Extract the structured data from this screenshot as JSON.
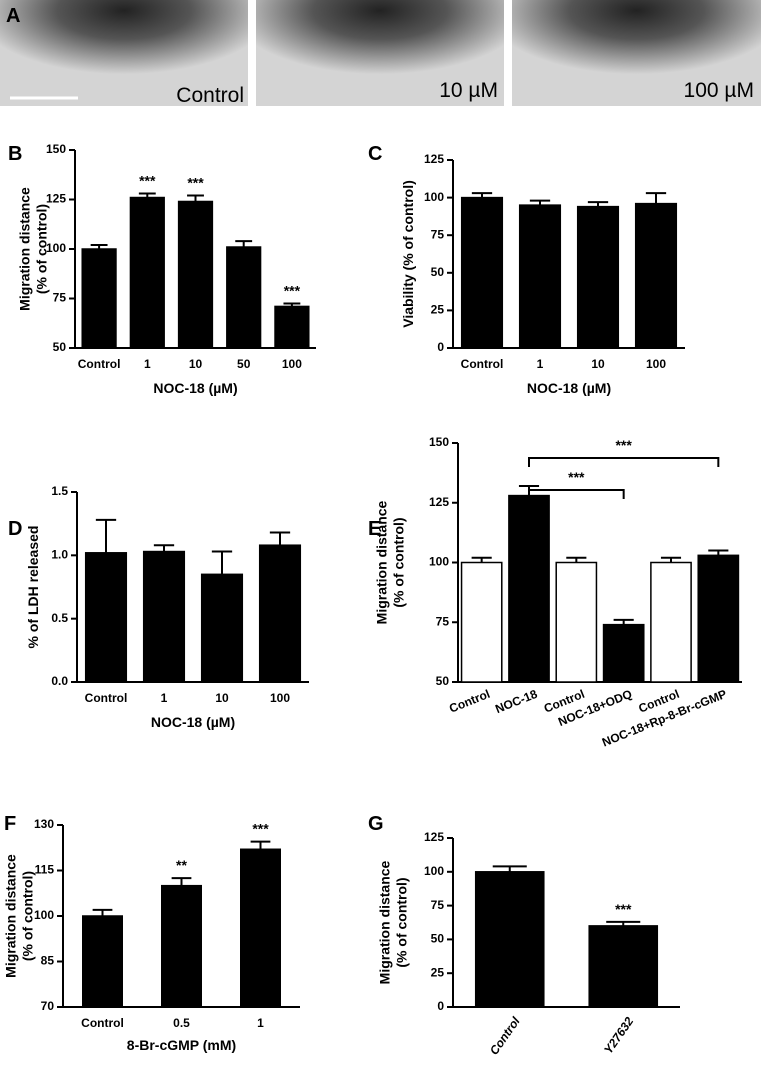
{
  "panel_a": {
    "panel": "A",
    "labels": [
      "Control",
      "10 µM",
      "100 µM"
    ]
  },
  "chart_data": [
    {
      "type": "bar",
      "panel": "B",
      "ylabel": [
        "Migration distance",
        "(% of control)"
      ],
      "xlabel": "NOC-18 (µM)",
      "categories": [
        "Control",
        "1",
        "10",
        "50",
        "100"
      ],
      "values": [
        100,
        126,
        124,
        101,
        71
      ],
      "errors": [
        2,
        2,
        3,
        3,
        1.5
      ],
      "significance": [
        null,
        "***",
        "***",
        null,
        "***"
      ],
      "color": "#000000",
      "ylim": [
        50,
        150
      ],
      "yticks": [
        50,
        75,
        100,
        125,
        150
      ]
    },
    {
      "type": "bar",
      "panel": "C",
      "ylabel": [
        "Viability (% of control)"
      ],
      "xlabel": "NOC-18 (µM)",
      "categories": [
        "Control",
        "1",
        "10",
        "100"
      ],
      "values": [
        100,
        95,
        94,
        96
      ],
      "errors": [
        3,
        3,
        3,
        7
      ],
      "color": "#000000",
      "ylim": [
        0,
        125
      ],
      "yticks": [
        0,
        25,
        50,
        75,
        100,
        125
      ]
    },
    {
      "type": "bar",
      "panel": "D",
      "ylabel": [
        "% of LDH released"
      ],
      "xlabel": "NOC-18 (µM)",
      "categories": [
        "Control",
        "1",
        "10",
        "100"
      ],
      "values": [
        1.02,
        1.03,
        0.85,
        1.08
      ],
      "errors": [
        0.26,
        0.05,
        0.18,
        0.1
      ],
      "color": "#000000",
      "ylim": [
        0,
        1.5
      ],
      "yticks": [
        {
          "value": 0,
          "label": "0.0"
        },
        0.5,
        {
          "value": 1,
          "label": "1.0"
        },
        1.5
      ]
    },
    {
      "type": "bar",
      "panel": "E",
      "ylabel": [
        "Migration distance",
        "(% of control)"
      ],
      "categories": [
        "Control",
        "NOC-18",
        "Control",
        "NOC-18+ODQ",
        "Control",
        "NOC-18+Rp-8-Br-cGMP"
      ],
      "values": [
        100,
        128,
        100,
        74,
        100,
        103
      ],
      "errors": [
        2,
        4,
        2,
        2,
        2,
        2
      ],
      "colors": [
        "#ffffff",
        "#000000",
        "#ffffff",
        "#000000",
        "#ffffff",
        "#000000"
      ],
      "comparisons": [
        {
          "between": [
            "NOC-18",
            "NOC-18+ODQ"
          ],
          "label": "***"
        },
        {
          "between": [
            "NOC-18",
            "NOC-18+Rp-8-Br-cGMP"
          ],
          "label": "***"
        }
      ],
      "ylim": [
        50,
        150
      ],
      "yticks": [
        50,
        75,
        100,
        125,
        150
      ]
    },
    {
      "type": "bar",
      "panel": "F",
      "ylabel": [
        "Migration distance",
        "(% of control)"
      ],
      "xlabel": "8-Br-cGMP (mM)",
      "categories": [
        "Control",
        "0.5",
        "1"
      ],
      "values": [
        100,
        110,
        122
      ],
      "errors": [
        2,
        2.5,
        2.5
      ],
      "significance": [
        null,
        "**",
        "***"
      ],
      "color": "#000000",
      "ylim": [
        70,
        130
      ],
      "yticks": [
        70,
        85,
        100,
        115,
        130
      ]
    },
    {
      "type": "bar",
      "panel": "G",
      "ylabel": [
        "Migration distance",
        "(% of control)"
      ],
      "categories": [
        "Control",
        "Y27632"
      ],
      "values": [
        100,
        60
      ],
      "errors": [
        4,
        3
      ],
      "significance": [
        null,
        "***"
      ],
      "color": "#000000",
      "ylim": [
        0,
        125
      ],
      "yticks": [
        0,
        25,
        50,
        75,
        100,
        125
      ]
    }
  ]
}
